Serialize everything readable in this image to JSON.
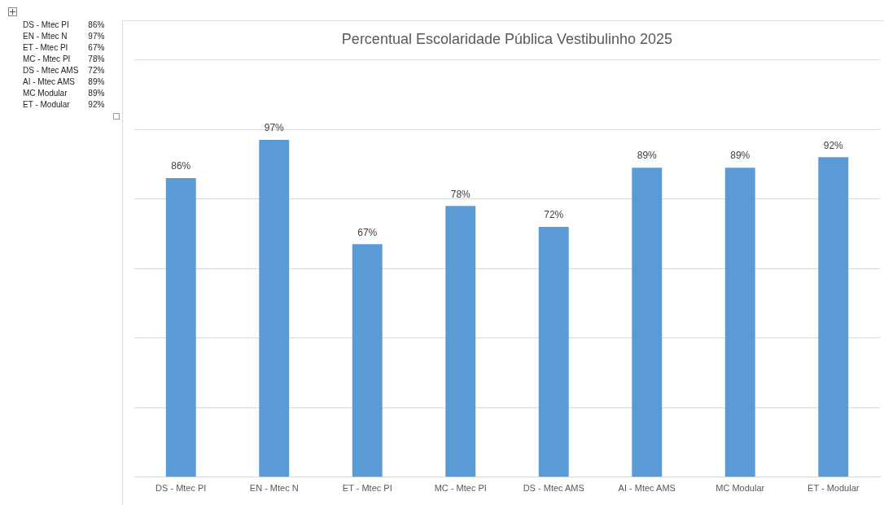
{
  "chart_data": {
    "type": "bar",
    "title": "Percentual Escolaridade Pública Vestibulinho 2025",
    "categories": [
      "DS - Mtec PI",
      "EN - Mtec N",
      "ET - Mtec PI",
      "MC - Mtec PI",
      "DS - Mtec AMS",
      "AI - Mtec AMS",
      "MC Modular",
      "ET - Modular"
    ],
    "values": [
      86,
      97,
      67,
      78,
      72,
      89,
      89,
      92
    ],
    "value_labels": [
      "86%",
      "97%",
      "67%",
      "78%",
      "72%",
      "89%",
      "89%",
      "92%"
    ],
    "color": "#5b9bd5",
    "ylim": [
      0,
      120
    ],
    "yticks": [
      {
        "value": 0,
        "label": null
      },
      {
        "value": 20,
        "label": null
      },
      {
        "value": 40,
        "label": null
      },
      {
        "value": 60,
        "label": null
      },
      {
        "value": 80,
        "label": null
      },
      {
        "value": 100,
        "label": null
      },
      {
        "value": 120,
        "label": null
      }
    ],
    "tick_labels": "x",
    "grid": "y",
    "legend": false
  }
}
